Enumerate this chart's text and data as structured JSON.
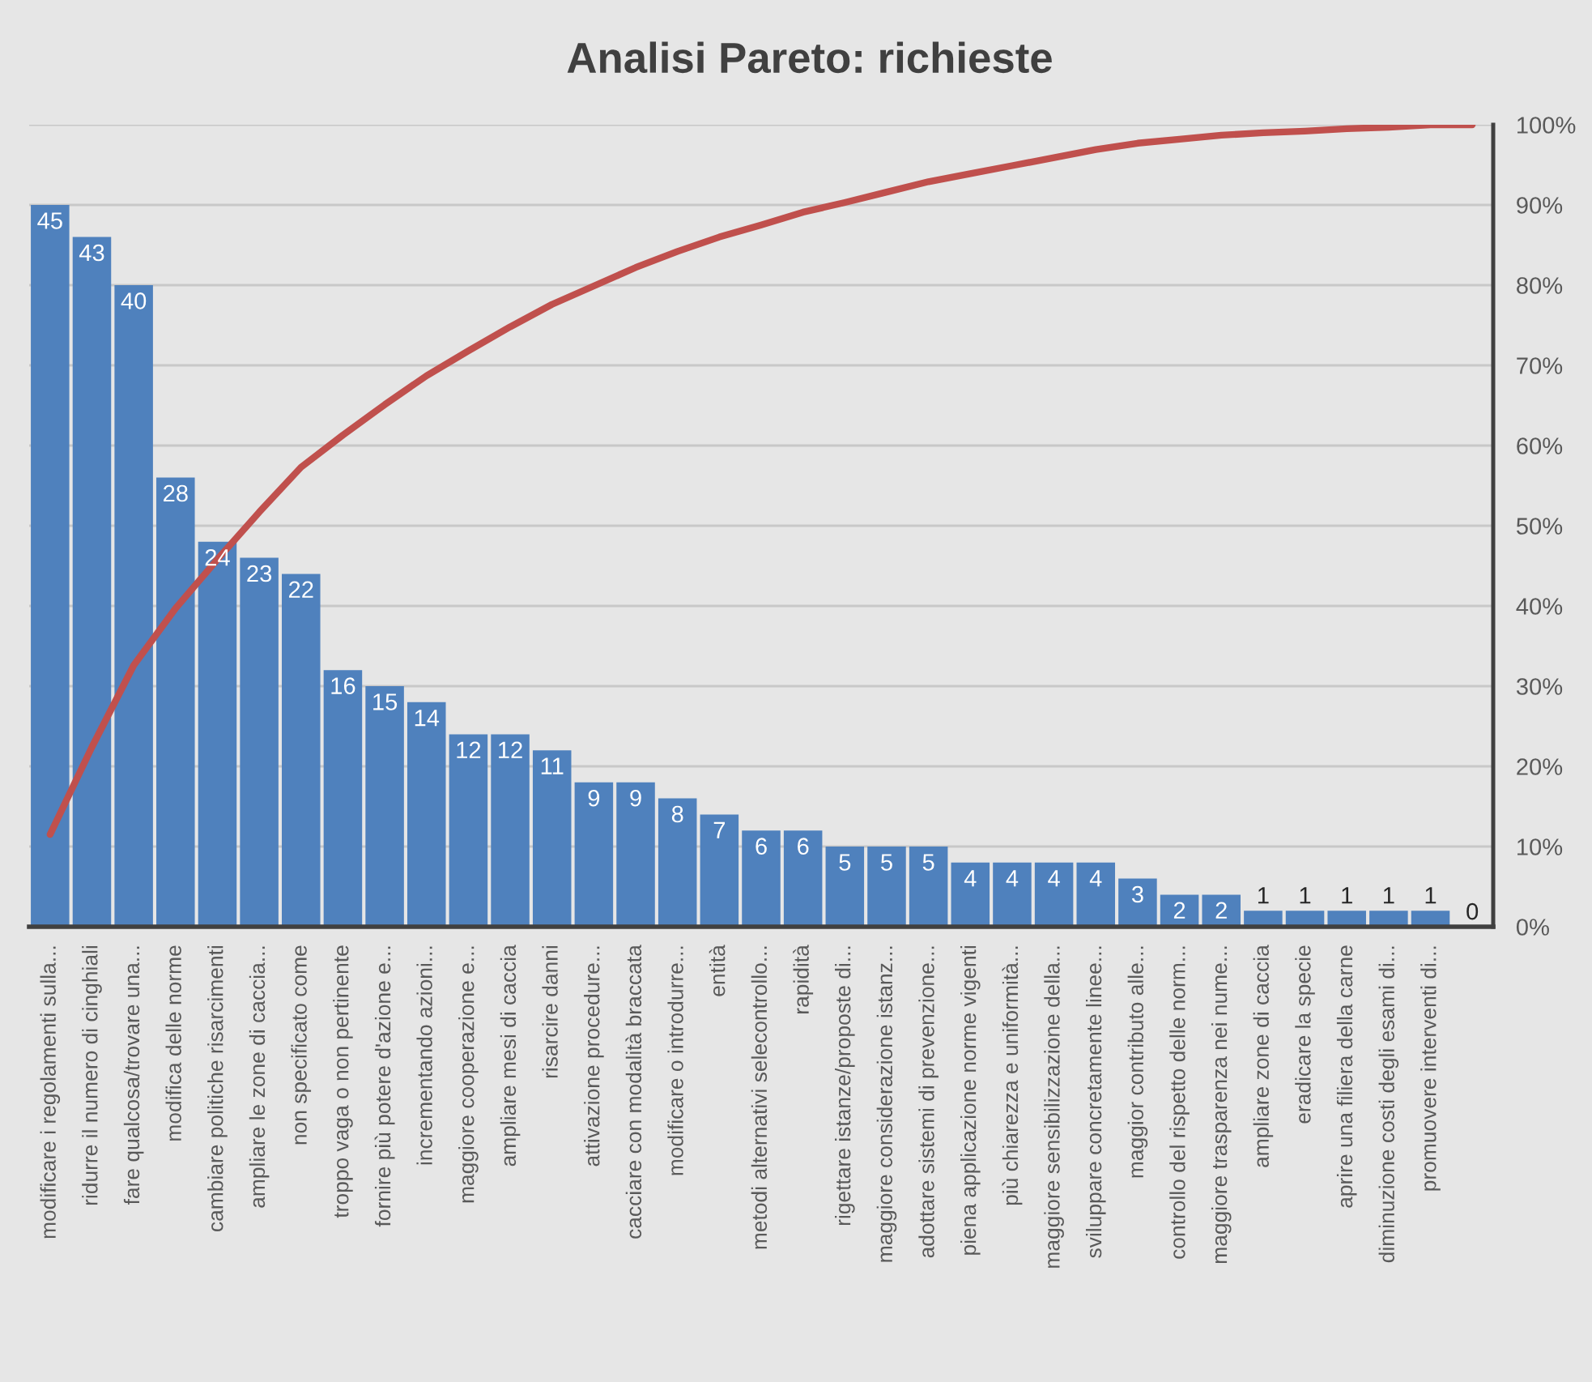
{
  "chart_data": {
    "type": "bar",
    "title": "Analisi Pareto: richieste",
    "categories": [
      "modificare i regolamenti sulla...",
      "ridurre il numero di cinghiali",
      "fare qualcosa/trovare una...",
      "modifica delle norme",
      "cambiare politiche risarcimenti",
      "ampliare le zone di caccia...",
      "non specificato come",
      "troppo vaga o non pertinente",
      "fornire più potere d'azione e...",
      "incrementando azioni...",
      "maggiore cooperazione e...",
      "ampliare mesi di caccia",
      "risarcire danni",
      "attivazione procedure...",
      "cacciare con modalità braccata",
      "modificare o introdurre...",
      "entità",
      "metodi alternativi selecontrollo...",
      "rapidità",
      "rigettare istanze/proposte di...",
      "maggiore considerazione istanz...",
      "adottare sistemi di prevenzione...",
      "piena applicazione norme vigenti",
      "più chiarezza e uniformità...",
      "maggiore sensibilizzazione della...",
      "sviluppare concretamente linee...",
      "maggior contributo alle...",
      "controllo del rispetto delle norm...",
      "maggiore trasparenza nei nume...",
      "ampliare zone di caccia",
      "eradicare la specie",
      "aprire una filiera della carne",
      "diminuzione costi degli esami di...",
      "promuovere interventi di...",
      null
    ],
    "series": [
      {
        "color": "#4f81bd",
        "values": [
          45,
          43,
          40,
          28,
          24,
          23,
          22,
          16,
          15,
          14,
          12,
          12,
          11,
          9,
          9,
          8,
          7,
          6,
          6,
          5,
          5,
          5,
          4,
          4,
          4,
          4,
          3,
          2,
          2,
          1,
          1,
          1,
          1,
          1,
          0
        ],
        "value_labels": [
          "45",
          "43",
          "40",
          "28",
          "24",
          "23",
          "22",
          "16",
          "15",
          "14",
          "12",
          "12",
          "11",
          "9",
          "9",
          "8",
          "7",
          "6",
          "6",
          "5",
          "5",
          "5",
          "4",
          "4",
          "4",
          "4",
          "3",
          "2",
          "2",
          "1",
          "1",
          "1",
          "1",
          "1",
          "0"
        ]
      },
      {
        "type": "line",
        "axis": "y2",
        "color": "#c0504d",
        "values": [
          11.5,
          22.4,
          32.6,
          39.7,
          45.8,
          51.7,
          57.3,
          61.3,
          65.1,
          68.7,
          71.8,
          74.8,
          77.6,
          79.9,
          82.2,
          84.2,
          86.0,
          87.5,
          89.1,
          90.3,
          91.6,
          92.9,
          93.9,
          94.9,
          95.9,
          96.9,
          97.7,
          98.2,
          98.7,
          99.0,
          99.2,
          99.5,
          99.7,
          100,
          100
        ]
      }
    ],
    "ylim": [
      0,
      50
    ],
    "y2lim": [
      0,
      100
    ],
    "y2ticks": [
      {
        "value": 0,
        "label": "0%"
      },
      {
        "value": 10,
        "label": "10%"
      },
      {
        "value": 20,
        "label": "20%"
      },
      {
        "value": 30,
        "label": "30%"
      },
      {
        "value": 40,
        "label": "40%"
      },
      {
        "value": 50,
        "label": "50%"
      },
      {
        "value": 60,
        "label": "60%"
      },
      {
        "value": 70,
        "label": "70%"
      },
      {
        "value": 80,
        "label": "80%"
      },
      {
        "value": 90,
        "label": "90%"
      },
      {
        "value": 100,
        "label": "100%"
      }
    ],
    "grid": "y"
  }
}
